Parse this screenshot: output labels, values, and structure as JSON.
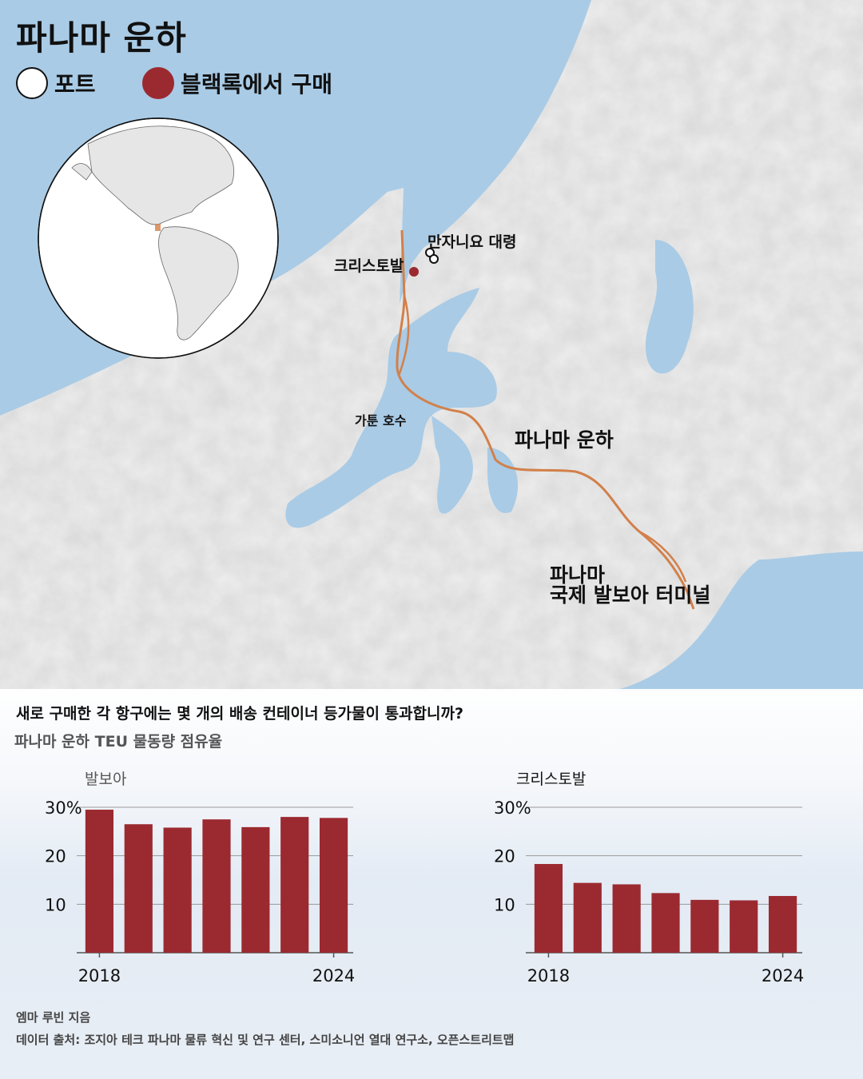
{
  "title": "파나마 운하",
  "legend": [
    {
      "label": "포트",
      "color": "#ffffff"
    },
    {
      "label": "블랙록에서 구매",
      "color": "#9b2a30"
    }
  ],
  "map_labels": {
    "manzanillo": "만자니요 대령",
    "cristobal": "크리스토발",
    "gatun_lake": "가툰 호수",
    "canal": "파나마 운하",
    "balboa_line1": "파나마",
    "balboa_line2": "국제 발보아 터미널"
  },
  "colors": {
    "water": "#a9cbe6",
    "land": "#eeeeee",
    "route": "#d2804a",
    "bar": "#9b2a30",
    "globe_ocean": "#ffffff"
  },
  "question": "새로 구매한 각 항구에는 몇 개의 배송 컨테이너 등가물이 통과합니까?",
  "subtitle": "파나마 운하 TEU 물동량 점유율",
  "chart_data": [
    {
      "type": "bar",
      "title": "발보아",
      "x": [
        2018,
        2019,
        2020,
        2021,
        2022,
        2023,
        2024
      ],
      "values": [
        29.5,
        26.5,
        25.8,
        27.5,
        25.9,
        28.0,
        27.8
      ],
      "ylim": [
        0,
        30
      ],
      "yticks": [
        10,
        20,
        30
      ],
      "ytick_labels": [
        "10",
        "20",
        "30%"
      ],
      "xtick_labels": [
        "2018",
        "2024"
      ],
      "grid": true
    },
    {
      "type": "bar",
      "title": "크리스토발",
      "x": [
        2018,
        2019,
        2020,
        2021,
        2022,
        2023,
        2024
      ],
      "values": [
        18.3,
        14.4,
        14.1,
        12.3,
        10.9,
        10.8,
        11.7
      ],
      "ylim": [
        0,
        30
      ],
      "yticks": [
        10,
        20,
        30
      ],
      "ytick_labels": [
        "10",
        "20",
        "30%"
      ],
      "xtick_labels": [
        "2018",
        "2024"
      ],
      "grid": true
    }
  ],
  "footer": {
    "author": "엠마 루빈 지음",
    "source": "데이터 출처: 조지아 테크 파나마 물류 혁신 및 연구 센터, 스미소니언 열대 연구소, 오픈스트리트맵"
  }
}
